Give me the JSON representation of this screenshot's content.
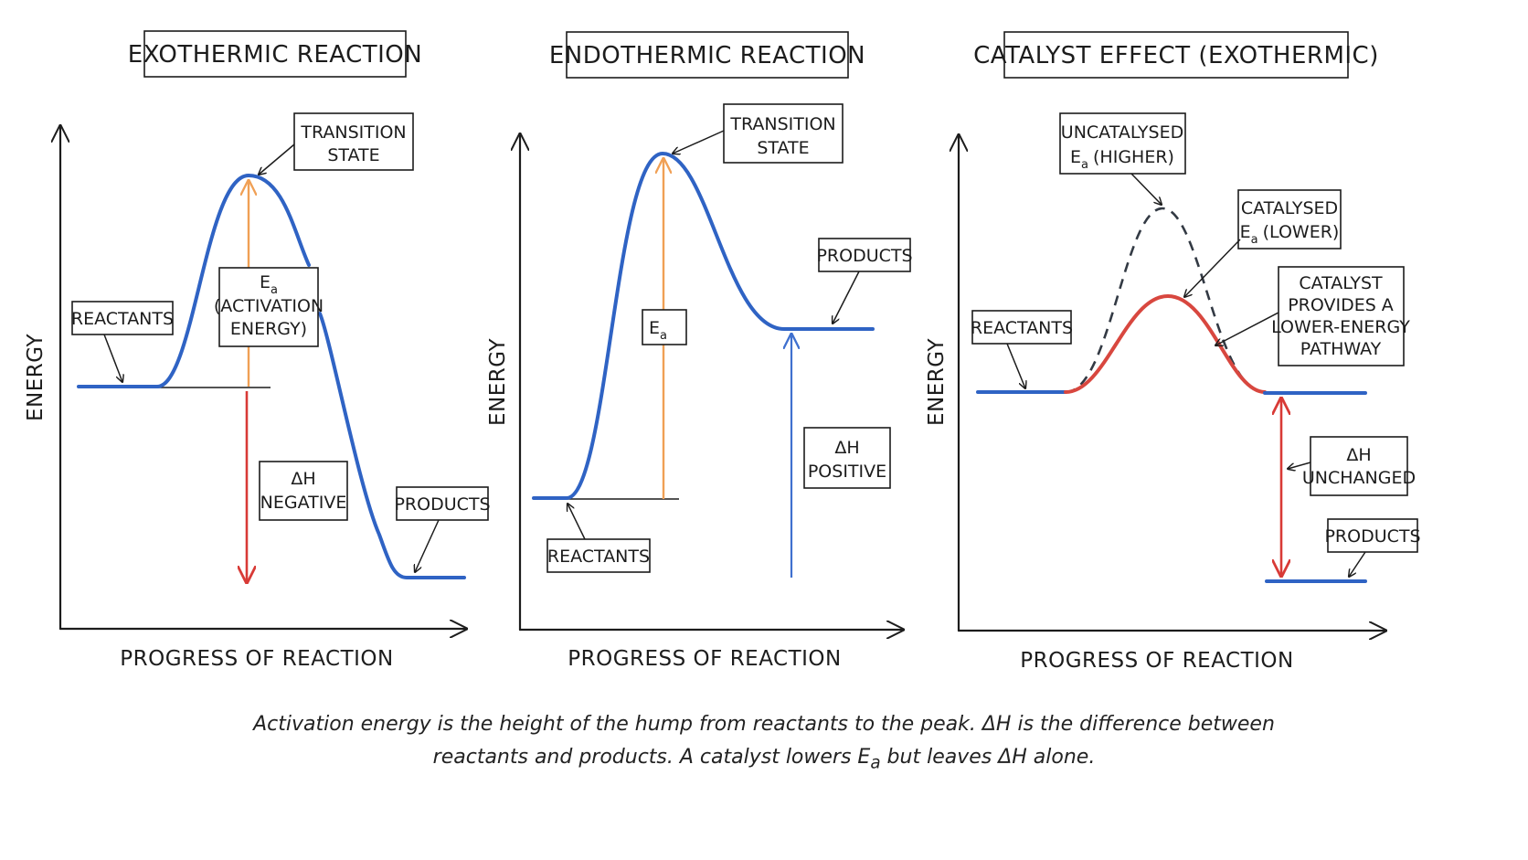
{
  "panels": [
    {
      "title": "EXOTHERMIC REACTION",
      "y_axis_label": "ENERGY",
      "x_axis_label": "PROGRESS OF REACTION",
      "labels": {
        "transition_state": [
          "TRANSITION",
          "STATE"
        ],
        "reactants": "REACTANTS",
        "products": "PRODUCTS",
        "ea_symbol": "E",
        "ea_subscript": "a",
        "ea_text": [
          "(ACTIVATION",
          "ENERGY)"
        ],
        "delta_h": [
          "ΔH",
          "NEGATIVE"
        ]
      }
    },
    {
      "title": "ENDOTHERMIC REACTION",
      "y_axis_label": "ENERGY",
      "x_axis_label": "PROGRESS OF REACTION",
      "labels": {
        "transition_state": [
          "TRANSITION",
          "STATE"
        ],
        "reactants": "REACTANTS",
        "products": "PRODUCTS",
        "ea_symbol": "E",
        "ea_subscript": "a",
        "delta_h": [
          "ΔH",
          "POSITIVE"
        ]
      }
    },
    {
      "title": "CATALYST EFFECT (EXOTHERMIC)",
      "y_axis_label": "ENERGY",
      "x_axis_label": "PROGRESS OF REACTION",
      "labels": {
        "uncatalysed": [
          "UNCATALYSED",
          "(HIGHER)"
        ],
        "catalysed": [
          "CATALYSED",
          "(LOWER)"
        ],
        "ea_symbol": "E",
        "ea_subscript": "a",
        "catalyst_note": [
          "CATALYST",
          "PROVIDES A",
          "LOWER-ENERGY",
          "PATHWAY"
        ],
        "reactants": "REACTANTS",
        "products": "PRODUCTS",
        "delta_h": [
          "ΔH",
          "UNCHANGED"
        ]
      }
    }
  ],
  "caption": {
    "line1": "Activation energy is the height of the hump from reactants to the peak. ΔH is the difference between",
    "line2_before": "reactants and products. A catalyst lowers E",
    "line2_sub": "a",
    "line2_after": " but leaves ΔH alone."
  },
  "colors": {
    "energy_curve": "#2f63c4",
    "catalysed_curve": "#d8473f",
    "activation_arrow": "#f0a055",
    "delta_h_arrow_exothermic": "#d83a36",
    "delta_h_arrow_endothermic": "#3f70cf",
    "uncatalysed_curve": "#333a44"
  }
}
